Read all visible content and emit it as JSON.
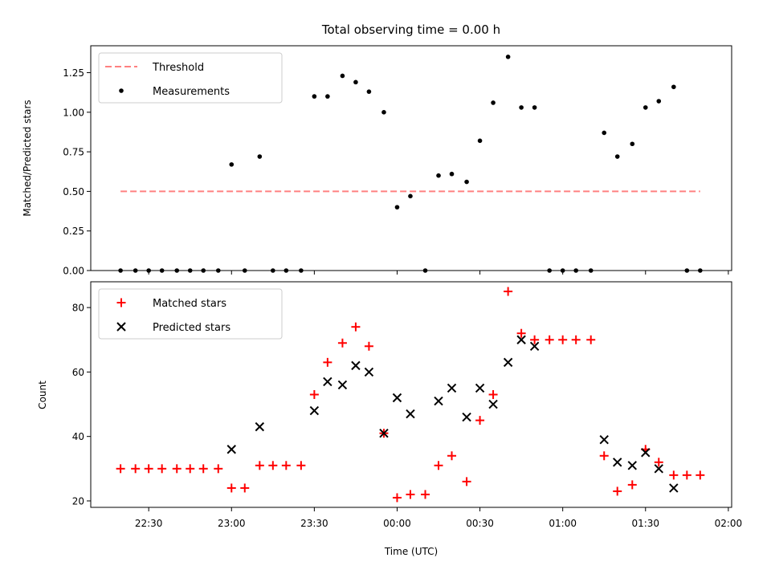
{
  "chart_data": {
    "title": "Total observing time = 0.00 h",
    "xlabel": "Time (UTC)",
    "x_unit": "hours after 22:00 UTC",
    "x_ticks": [
      {
        "value": 0.5,
        "label": "22:30"
      },
      {
        "value": 1.0,
        "label": "23:00"
      },
      {
        "value": 1.5,
        "label": "23:30"
      },
      {
        "value": 2.0,
        "label": "00:00"
      },
      {
        "value": 2.5,
        "label": "00:30"
      },
      {
        "value": 3.0,
        "label": "01:00"
      },
      {
        "value": 3.5,
        "label": "01:30"
      },
      {
        "value": 4.0,
        "label": "02:00"
      }
    ],
    "xlim": [
      0.15,
      4.02
    ],
    "panels": [
      {
        "type": "scatter",
        "ylabel": "Matched/Predicted stars",
        "ylim": [
          0,
          1.42
        ],
        "yticks": [
          0,
          0.25,
          0.5,
          0.75,
          1.0,
          1.25
        ],
        "ytick_labels": [
          "0.00",
          "0.25",
          "0.50",
          "0.75",
          "1.00",
          "1.25"
        ],
        "legend": "top-left",
        "lines": [
          {
            "name": "Threshold",
            "color": "#ff8080",
            "style": "dashed",
            "x": [
              0.33,
              3.83
            ],
            "y": [
              0.5,
              0.5
            ]
          }
        ],
        "series": [
          {
            "name": "Measurements",
            "marker": "dot",
            "color": "#000000",
            "points": [
              [
                0.33,
                0
              ],
              [
                0.42,
                0
              ],
              [
                0.5,
                0
              ],
              [
                0.58,
                0
              ],
              [
                0.67,
                0
              ],
              [
                0.75,
                0
              ],
              [
                0.83,
                0
              ],
              [
                0.92,
                0
              ],
              [
                1.0,
                0.67
              ],
              [
                1.08,
                0
              ],
              [
                1.17,
                0.72
              ],
              [
                1.25,
                0
              ],
              [
                1.33,
                0
              ],
              [
                1.42,
                0
              ],
              [
                1.5,
                1.1
              ],
              [
                1.58,
                1.1
              ],
              [
                1.67,
                1.23
              ],
              [
                1.75,
                1.19
              ],
              [
                1.83,
                1.13
              ],
              [
                1.92,
                1.0
              ],
              [
                2.0,
                0.4
              ],
              [
                2.08,
                0.47
              ],
              [
                2.17,
                0
              ],
              [
                2.25,
                0.6
              ],
              [
                2.33,
                0.61
              ],
              [
                2.42,
                0.56
              ],
              [
                2.5,
                0.82
              ],
              [
                2.58,
                1.06
              ],
              [
                2.67,
                1.35
              ],
              [
                2.75,
                1.03
              ],
              [
                2.83,
                1.03
              ],
              [
                2.92,
                0
              ],
              [
                3.0,
                0
              ],
              [
                3.08,
                0
              ],
              [
                3.17,
                0
              ],
              [
                3.25,
                0.87
              ],
              [
                3.33,
                0.72
              ],
              [
                3.42,
                0.8
              ],
              [
                3.5,
                1.03
              ],
              [
                3.58,
                1.07
              ],
              [
                3.67,
                1.16
              ],
              [
                3.75,
                0
              ],
              [
                3.83,
                0
              ]
            ]
          }
        ]
      },
      {
        "type": "scatter",
        "ylabel": "Count",
        "ylim": [
          18,
          88
        ],
        "yticks": [
          20,
          40,
          60,
          80
        ],
        "ytick_labels": [
          "20",
          "40",
          "60",
          "80"
        ],
        "legend": "top-left",
        "series": [
          {
            "name": "Matched stars",
            "marker": "plus",
            "color": "#ff0000",
            "points": [
              [
                0.33,
                30
              ],
              [
                0.42,
                30
              ],
              [
                0.5,
                30
              ],
              [
                0.58,
                30
              ],
              [
                0.67,
                30
              ],
              [
                0.75,
                30
              ],
              [
                0.83,
                30
              ],
              [
                0.92,
                30
              ],
              [
                1.0,
                24
              ],
              [
                1.08,
                24
              ],
              [
                1.17,
                31
              ],
              [
                1.25,
                31
              ],
              [
                1.33,
                31
              ],
              [
                1.42,
                31
              ],
              [
                1.5,
                53
              ],
              [
                1.58,
                63
              ],
              [
                1.67,
                69
              ],
              [
                1.75,
                74
              ],
              [
                1.83,
                68
              ],
              [
                1.92,
                41
              ],
              [
                2.0,
                21
              ],
              [
                2.08,
                22
              ],
              [
                2.17,
                22
              ],
              [
                2.25,
                31
              ],
              [
                2.33,
                34
              ],
              [
                2.42,
                26
              ],
              [
                2.5,
                45
              ],
              [
                2.58,
                53
              ],
              [
                2.67,
                85
              ],
              [
                2.75,
                72
              ],
              [
                2.83,
                70
              ],
              [
                2.92,
                70
              ],
              [
                3.0,
                70
              ],
              [
                3.08,
                70
              ],
              [
                3.17,
                70
              ],
              [
                3.25,
                34
              ],
              [
                3.33,
                23
              ],
              [
                3.42,
                25
              ],
              [
                3.5,
                36
              ],
              [
                3.58,
                32
              ],
              [
                3.67,
                28
              ],
              [
                3.75,
                28
              ],
              [
                3.83,
                28
              ]
            ]
          },
          {
            "name": "Predicted stars",
            "marker": "x",
            "color": "#000000",
            "points": [
              [
                1.0,
                36
              ],
              [
                1.17,
                43
              ],
              [
                1.5,
                48
              ],
              [
                1.58,
                57
              ],
              [
                1.67,
                56
              ],
              [
                1.75,
                62
              ],
              [
                1.83,
                60
              ],
              [
                1.92,
                41
              ],
              [
                2.0,
                52
              ],
              [
                2.08,
                47
              ],
              [
                2.25,
                51
              ],
              [
                2.33,
                55
              ],
              [
                2.42,
                46
              ],
              [
                2.5,
                55
              ],
              [
                2.58,
                50
              ],
              [
                2.67,
                63
              ],
              [
                2.75,
                70
              ],
              [
                2.83,
                68
              ],
              [
                3.25,
                39
              ],
              [
                3.33,
                32
              ],
              [
                3.42,
                31
              ],
              [
                3.5,
                35
              ],
              [
                3.58,
                30
              ],
              [
                3.67,
                24
              ]
            ]
          }
        ]
      }
    ]
  }
}
